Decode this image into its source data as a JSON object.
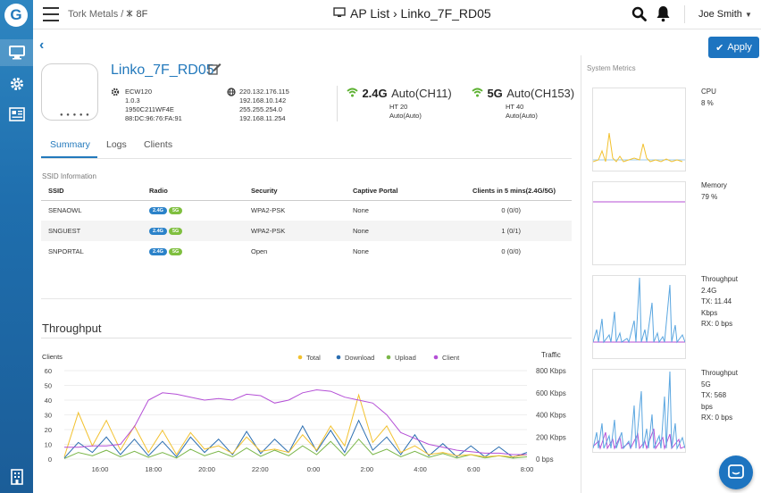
{
  "sidebar": {
    "logo": "G"
  },
  "topbar": {
    "breadcrumb_org": "Tork Metals /",
    "breadcrumb_floor": "8F",
    "title": "AP List › Linko_7F_RD05",
    "user": "Joe Smith"
  },
  "apply_label": "Apply",
  "ap": {
    "name": "Linko_7F_RD05",
    "device": [
      "ECW120",
      "1.0.3",
      "1950C211WF4E",
      "88:DC:96:76:FA:91"
    ],
    "network": [
      "220.132.176.115",
      "192.168.10.142",
      "255.255.254.0",
      "192.168.11.254"
    ],
    "radios": [
      {
        "band": "2.4G",
        "mode": "Auto(CH11)",
        "ht": "HT 20",
        "power": "Auto(Auto)"
      },
      {
        "band": "5G",
        "mode": "Auto(CH153)",
        "ht": "HT 40",
        "power": "Auto(Auto)"
      }
    ]
  },
  "tabs": [
    "Summary",
    "Logs",
    "Clients"
  ],
  "ssid_section": {
    "label": "SSID Information",
    "headers": [
      "SSID",
      "Radio",
      "Security",
      "Captive Portal",
      "Clients in 5 mins(2.4G/5G)"
    ],
    "rows": [
      {
        "ssid": "SENAOWL",
        "r1": "2.4G",
        "r2": "5G",
        "security": "WPA2-PSK",
        "portal": "None",
        "clients": "0 (0/0)"
      },
      {
        "ssid": "SNGUEST",
        "r1": "2.4G",
        "r2": "5G",
        "security": "WPA2-PSK",
        "portal": "None",
        "clients": "1 (0/1)"
      },
      {
        "ssid": "SNPORTAL",
        "r1": "2.4G",
        "r2": "5G",
        "security": "Open",
        "portal": "None",
        "clients": "0 (0/0)"
      }
    ]
  },
  "throughput": {
    "title": "Throughput",
    "left_axis_label": "Clients",
    "right_axis_label": "Traffic",
    "left_ticks": [
      "60",
      "50",
      "40",
      "30",
      "20",
      "10",
      "0"
    ],
    "right_ticks": [
      "800 Kbps",
      "600 Kbps",
      "400 Kbps",
      "200 Kbps",
      "0 bps"
    ],
    "x_ticks": [
      "16:00",
      "18:00",
      "20:00",
      "22:00",
      "0:00",
      "2:00",
      "4:00",
      "6:00",
      "8:00"
    ],
    "legend": [
      "Total",
      "Download",
      "Upload",
      "Client"
    ]
  },
  "colors": {
    "total": "#f2c12e",
    "download": "#2a6db0",
    "upload": "#7ab648",
    "client": "#b44fd6",
    "accent": "#2379bc"
  },
  "metrics": {
    "label": "System Metrics",
    "cpu": {
      "name": "CPU",
      "value": "8 %"
    },
    "memory": {
      "name": "Memory",
      "value": "79 %"
    },
    "tp24": {
      "name": "Throughput",
      "band": "2.4G",
      "tx": "TX: 11.44",
      "tx_unit": "Kbps",
      "rx": "RX: 0 bps"
    },
    "tp5": {
      "name": "Throughput",
      "band": "5G",
      "tx": "TX: 568",
      "tx_unit": "bps",
      "rx": "RX: 0 bps"
    }
  },
  "chart_data": {
    "type": "line",
    "title": "Throughput",
    "xlabel": "",
    "ylabel": "Clients",
    "ylabel_right": "Traffic",
    "x": [
      "15:30",
      "16:00",
      "16:30",
      "17:00",
      "17:30",
      "18:00",
      "18:30",
      "19:00",
      "19:30",
      "20:00",
      "20:30",
      "21:00",
      "21:30",
      "22:00",
      "22:30",
      "23:00",
      "23:30",
      "0:00",
      "0:30",
      "1:00",
      "1:30",
      "2:00",
      "2:30",
      "3:00",
      "3:30",
      "4:00",
      "4:30",
      "5:00",
      "5:30",
      "6:00",
      "6:30",
      "7:00",
      "7:30",
      "8:00"
    ],
    "ylim": [
      0,
      60
    ],
    "ylim_right_kbps": [
      0,
      800
    ],
    "legend_position": "top",
    "series": [
      {
        "name": "Client",
        "axis": "left",
        "values": [
          8,
          8,
          9,
          9,
          10,
          22,
          40,
          45,
          44,
          42,
          40,
          41,
          40,
          44,
          43,
          38,
          40,
          45,
          47,
          46,
          42,
          40,
          38,
          30,
          18,
          14,
          10,
          8,
          6,
          5,
          4,
          4,
          3,
          3
        ]
      },
      {
        "name": "Total",
        "axis": "right",
        "values": [
          20,
          420,
          120,
          350,
          80,
          300,
          60,
          260,
          40,
          240,
          90,
          120,
          50,
          200,
          70,
          90,
          60,
          220,
          80,
          300,
          120,
          580,
          150,
          300,
          60,
          120,
          40,
          60,
          30,
          40,
          20,
          30,
          20,
          40
        ]
      },
      {
        "name": "Download",
        "axis": "right",
        "values": [
          10,
          150,
          60,
          200,
          40,
          180,
          30,
          160,
          20,
          200,
          60,
          180,
          40,
          250,
          50,
          180,
          60,
          300,
          70,
          260,
          60,
          350,
          80,
          200,
          40,
          220,
          30,
          140,
          20,
          120,
          20,
          110,
          15,
          60
        ]
      },
      {
        "name": "Upload",
        "axis": "right",
        "values": [
          5,
          60,
          30,
          80,
          20,
          70,
          15,
          60,
          10,
          90,
          30,
          70,
          20,
          100,
          25,
          80,
          30,
          120,
          40,
          160,
          30,
          180,
          40,
          90,
          20,
          70,
          15,
          50,
          10,
          40,
          10,
          30,
          8,
          20
        ]
      }
    ]
  }
}
